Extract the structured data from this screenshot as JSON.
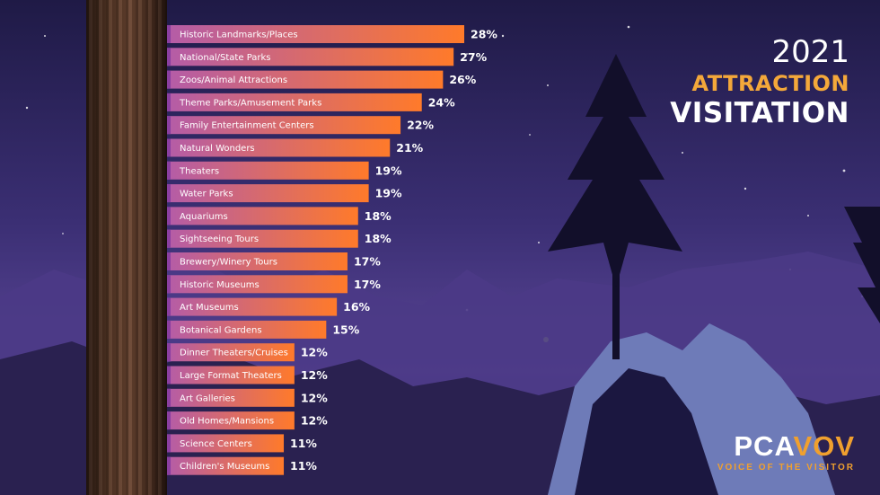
{
  "title": {
    "year": "2021",
    "line1": "ATTRACTION",
    "line2": "VISITATION"
  },
  "logo": {
    "main_part1": "PCA",
    "main_part2": "VOV",
    "tagline": "VOICE OF THE VISITOR"
  },
  "colors": {
    "bar_start": "#b45ca8",
    "bar_end": "#ff7a2a",
    "bar_cap": "#8a3fa0",
    "title_accent": "#f4a83a"
  },
  "chart_data": {
    "type": "bar",
    "orientation": "horizontal",
    "categories": [
      "Historic Landmarks/Places",
      "National/State Parks",
      "Zoos/Animal Attractions",
      "Theme Parks/Amusement Parks",
      "Family Entertainment Centers",
      "Natural Wonders",
      "Theaters",
      "Water Parks",
      "Aquariums",
      "Sightseeing Tours",
      "Brewery/Winery Tours",
      "Historic Museums",
      "Art Museums",
      "Botanical Gardens",
      "Dinner Theaters/Cruises",
      "Large Format Theaters",
      "Art Galleries",
      "Old Homes/Mansions",
      "Science Centers",
      "Children's Museums"
    ],
    "values": [
      28,
      27,
      26,
      24,
      22,
      21,
      19,
      19,
      18,
      18,
      17,
      17,
      16,
      15,
      12,
      12,
      12,
      12,
      11,
      11
    ],
    "value_labels": [
      "28%",
      "27%",
      "26%",
      "24%",
      "22%",
      "21%",
      "19%",
      "19%",
      "18%",
      "18%",
      "17%",
      "17%",
      "16%",
      "15%",
      "12%",
      "12%",
      "12%",
      "12%",
      "11%",
      "11%"
    ],
    "unit": "%",
    "xlim": [
      0,
      28
    ],
    "grid": false,
    "legend": "none"
  }
}
